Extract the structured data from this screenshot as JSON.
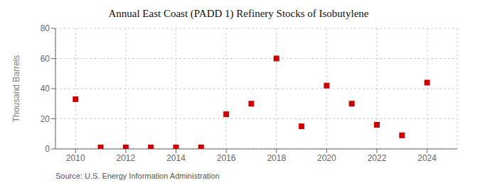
{
  "chart_data": {
    "type": "scatter",
    "title": "Annual East Coast (PADD 1) Refinery Stocks of Isobutylene",
    "ylabel": "Thousand Barrels",
    "annotation": "Source: U.S. Energy Information Administration",
    "x": [
      2010,
      2011,
      2012,
      2013,
      2014,
      2015,
      2016,
      2017,
      2018,
      2019,
      2020,
      2021,
      2022,
      2023,
      2024
    ],
    "values": [
      33,
      1,
      1,
      1,
      1,
      1,
      23,
      30,
      60,
      15,
      42,
      30,
      16,
      9,
      44
    ],
    "color": "#cc0000",
    "marker": "square",
    "xlim": [
      2009.2,
      2025.2
    ],
    "ylim": [
      0,
      80
    ],
    "xticks": [
      2010,
      2012,
      2014,
      2016,
      2018,
      2020,
      2022,
      2024
    ],
    "yticks": [
      0,
      20,
      40,
      60,
      80
    ],
    "grid": true
  }
}
